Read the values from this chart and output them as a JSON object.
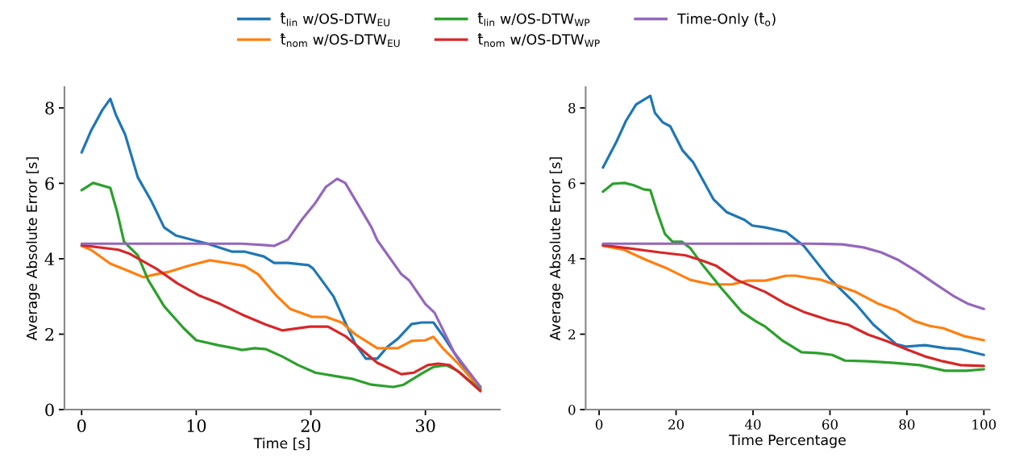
{
  "chart_data": [
    {
      "type": "line",
      "xlabel": "Time [s]",
      "ylabel": "Average Absolute Error [s]",
      "xlim": [
        -1.5,
        36.5
      ],
      "ylim": [
        0,
        8.55
      ],
      "xticks": [
        0,
        10,
        20,
        30
      ],
      "yticks": [
        0,
        2,
        4,
        6,
        8
      ],
      "grid": false,
      "legend": "top",
      "marker": "none",
      "line_style": "solid",
      "series": [
        {
          "name": "t̂$_{lin}$ w/OS-DTW$_{EU}$",
          "color": "#1f77b4",
          "x": [
            0,
            0.8,
            1.8,
            2.5,
            3.0,
            3.8,
            4.9,
            6.1,
            7.2,
            8.2,
            9.8,
            11.2,
            13.1,
            14.2,
            15.9,
            16.8,
            18.0,
            19.8,
            20.2,
            21.1,
            22.0,
            23.0,
            23.9,
            24.8,
            25.8,
            26.7,
            27.6,
            28.8,
            29.7,
            30.7,
            31.6,
            33.0,
            34.8
          ],
          "values": [
            6.82,
            7.38,
            7.94,
            8.24,
            7.81,
            7.29,
            6.16,
            5.52,
            4.83,
            4.62,
            4.49,
            4.38,
            4.19,
            4.19,
            4.06,
            3.89,
            3.89,
            3.83,
            3.74,
            3.37,
            2.99,
            2.31,
            1.73,
            1.35,
            1.35,
            1.67,
            1.88,
            2.27,
            2.31,
            2.31,
            1.93,
            1.28,
            0.6
          ]
        },
        {
          "name": "t̂$_{nom}$ w/OS-DTW$_{EU}$",
          "color": "#ff7f0e",
          "x": [
            0,
            0.8,
            2.5,
            4.2,
            5.4,
            6.5,
            7.7,
            9.3,
            11.2,
            13.1,
            14.2,
            15.4,
            17.0,
            18.2,
            20.1,
            21.3,
            22.7,
            23.9,
            25.8,
            27.6,
            28.8,
            30.0,
            30.7,
            31.6,
            32.8,
            34.8
          ],
          "values": [
            4.34,
            4.24,
            3.87,
            3.66,
            3.51,
            3.59,
            3.66,
            3.81,
            3.96,
            3.87,
            3.81,
            3.59,
            3.02,
            2.67,
            2.46,
            2.46,
            2.31,
            1.99,
            1.63,
            1.63,
            1.82,
            1.84,
            1.93,
            1.6,
            1.24,
            0.56
          ]
        },
        {
          "name": "t̂$_{lin}$ w/OS-DTW$_{WP}$",
          "color": "#2ca02c",
          "x": [
            0,
            1.0,
            2.5,
            3.1,
            3.7,
            4.9,
            5.8,
            7.2,
            8.9,
            10.0,
            11.9,
            13.3,
            14.0,
            15.1,
            16.1,
            17.5,
            18.9,
            20.4,
            22.3,
            23.7,
            25.3,
            27.2,
            28.1,
            29.7,
            30.7,
            31.8,
            32.8,
            34.8
          ],
          "values": [
            5.82,
            6.01,
            5.88,
            5.24,
            4.45,
            4.09,
            3.44,
            2.74,
            2.16,
            1.84,
            1.71,
            1.63,
            1.58,
            1.63,
            1.6,
            1.41,
            1.18,
            0.98,
            0.88,
            0.81,
            0.66,
            0.6,
            0.66,
            0.96,
            1.13,
            1.18,
            1.03,
            0.53
          ]
        },
        {
          "name": "t̂$_{nom}$ w/OS-DTW$_{WP}$",
          "color": "#d62728",
          "x": [
            0,
            3.2,
            4.2,
            6.5,
            8.4,
            10.3,
            12.1,
            14.0,
            16.1,
            17.5,
            19.9,
            21.5,
            23.0,
            24.4,
            25.8,
            27.9,
            29.0,
            30.2,
            31.1,
            32.1,
            33.0,
            34.8
          ],
          "values": [
            4.36,
            4.24,
            4.13,
            3.74,
            3.34,
            3.02,
            2.8,
            2.52,
            2.25,
            2.1,
            2.2,
            2.2,
            1.95,
            1.6,
            1.24,
            0.94,
            0.98,
            1.18,
            1.22,
            1.18,
            0.98,
            0.49
          ]
        },
        {
          "name": "Time-Only (t̂$_{o}$)",
          "color": "#9467bd",
          "x": [
            0,
            5,
            10,
            14,
            16.1,
            16.8,
            18.0,
            19.2,
            20.4,
            21.3,
            22.3,
            23.0,
            24.1,
            25.3,
            25.8,
            27.9,
            28.6,
            30.0,
            30.8,
            32.5,
            34.8
          ],
          "values": [
            4.4,
            4.4,
            4.4,
            4.4,
            4.36,
            4.34,
            4.51,
            5.03,
            5.48,
            5.9,
            6.12,
            6.01,
            5.45,
            4.83,
            4.49,
            3.59,
            3.42,
            2.8,
            2.57,
            1.52,
            0.6
          ]
        }
      ]
    },
    {
      "type": "line",
      "xlabel": "Time Percentage",
      "ylabel": "Average Absolute Error [s]",
      "xlim": [
        -3.5,
        101.5
      ],
      "ylim": [
        0,
        8.55
      ],
      "xticks": [
        0,
        20,
        40,
        60,
        80,
        100
      ],
      "yticks": [
        0,
        2,
        4,
        6,
        8
      ],
      "grid": false,
      "marker": "none",
      "line_style": "solid",
      "series": [
        {
          "color": "#1f77b4",
          "x": [
            1.0,
            4.4,
            7.0,
            9.6,
            13.3,
            14.5,
            16.5,
            18.5,
            21.7,
            24.5,
            29.7,
            33.1,
            37.8,
            39.8,
            43.2,
            48.6,
            53.2,
            59.8,
            66.7,
            71.3,
            77.3,
            79.9,
            84.7,
            90.0,
            94.0,
            100
          ],
          "values": [
            6.42,
            7.08,
            7.66,
            8.09,
            8.32,
            7.87,
            7.62,
            7.51,
            6.87,
            6.55,
            5.58,
            5.24,
            5.03,
            4.88,
            4.83,
            4.71,
            4.34,
            3.49,
            2.8,
            2.25,
            1.73,
            1.67,
            1.71,
            1.63,
            1.6,
            1.45
          ]
        },
        {
          "color": "#ff7f0e",
          "x": [
            1.0,
            6.4,
            12.4,
            17.7,
            23.7,
            29.1,
            34.5,
            38.6,
            43.2,
            48.6,
            51.2,
            54.6,
            57.8,
            61.2,
            66.7,
            72.7,
            77.3,
            81.9,
            85.9,
            89.4,
            94.8,
            100
          ],
          "values": [
            4.34,
            4.24,
            3.96,
            3.74,
            3.44,
            3.32,
            3.32,
            3.42,
            3.42,
            3.55,
            3.55,
            3.49,
            3.44,
            3.32,
            3.12,
            2.8,
            2.63,
            2.35,
            2.22,
            2.16,
            1.95,
            1.84
          ]
        },
        {
          "color": "#2ca02c",
          "x": [
            1.0,
            3.6,
            6.6,
            9.0,
            11.6,
            13.3,
            15.1,
            17.1,
            19.1,
            21.5,
            23.7,
            27.1,
            31.7,
            37.1,
            40.6,
            43.2,
            47.8,
            52.6,
            56.6,
            60.6,
            63.9,
            69.9,
            76.7,
            83.3,
            90.0,
            95.4,
            100
          ],
          "values": [
            5.78,
            5.99,
            6.01,
            5.95,
            5.84,
            5.82,
            5.24,
            4.66,
            4.45,
            4.45,
            4.28,
            3.81,
            3.23,
            2.59,
            2.35,
            2.2,
            1.82,
            1.52,
            1.5,
            1.45,
            1.3,
            1.28,
            1.24,
            1.18,
            1.03,
            1.03,
            1.07
          ]
        },
        {
          "color": "#d62728",
          "x": [
            1.0,
            7.6,
            15.7,
            22.5,
            26.5,
            30.5,
            35.7,
            43.2,
            48.6,
            53.2,
            59.8,
            64.7,
            69.9,
            74.7,
            79.9,
            84.7,
            89.4,
            94.0,
            100
          ],
          "values": [
            4.36,
            4.28,
            4.17,
            4.09,
            3.96,
            3.81,
            3.44,
            3.12,
            2.8,
            2.59,
            2.37,
            2.25,
            1.99,
            1.82,
            1.6,
            1.41,
            1.28,
            1.18,
            1.16
          ]
        },
        {
          "color": "#9467bd",
          "x": [
            1.0,
            20,
            40,
            55,
            63.3,
            68.7,
            73.3,
            77.9,
            82.7,
            87.3,
            92.0,
            96.0,
            100
          ],
          "values": [
            4.4,
            4.4,
            4.4,
            4.4,
            4.38,
            4.3,
            4.17,
            3.96,
            3.66,
            3.34,
            3.02,
            2.8,
            2.67
          ]
        }
      ]
    }
  ]
}
